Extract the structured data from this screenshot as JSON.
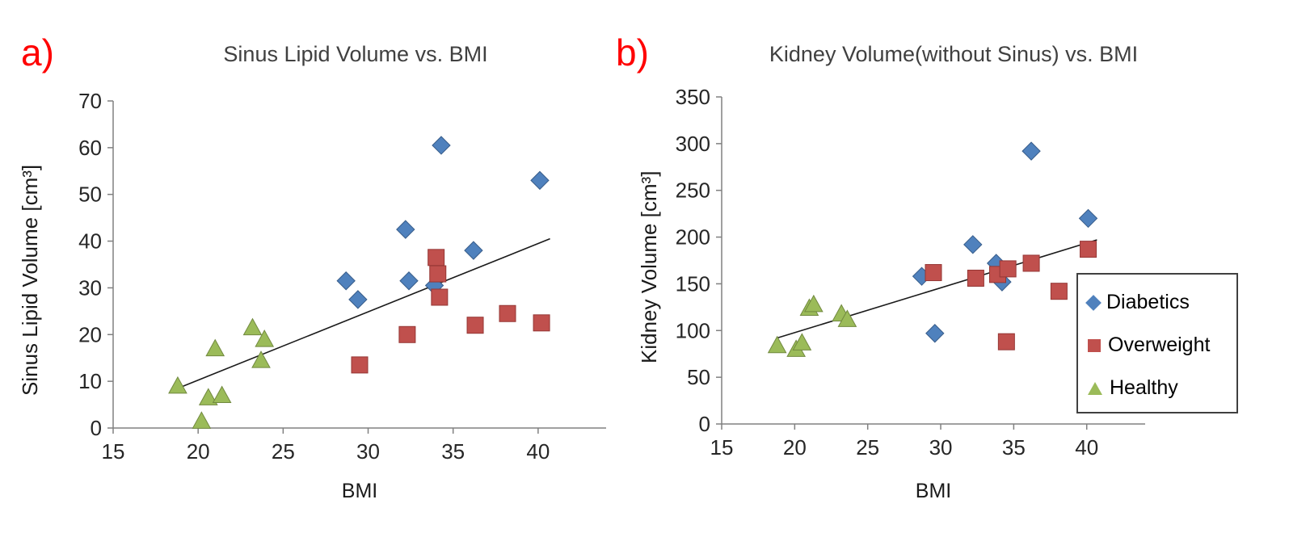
{
  "colors": {
    "background": "#ffffff",
    "axis": "#808080",
    "tick_text": "#262626",
    "title_text": "#404040",
    "panel_label": "#ff0000",
    "trendline": "#1a1a1a",
    "diabetics": "#4F81BD",
    "overweight": "#C0504D",
    "healthy": "#9BBB59"
  },
  "legend": {
    "items": [
      {
        "label": "Diabetics",
        "marker": "diamond",
        "color": "#4F81BD"
      },
      {
        "label": "Overweight",
        "marker": "square",
        "color": "#C0504D"
      },
      {
        "label": "Healthy",
        "marker": "triangle",
        "color": "#9BBB59"
      }
    ]
  },
  "chart_data": [
    {
      "type": "scatter",
      "panel_label": "a)",
      "title": "Sinus Lipid Volume vs. BMI",
      "xlabel": "BMI",
      "ylabel": "Sinus Lipid Volume [cm³]",
      "xlim": [
        15,
        44
      ],
      "ylim": [
        0,
        70
      ],
      "xticks": [
        15,
        20,
        25,
        30,
        35,
        40
      ],
      "yticks": [
        0,
        10,
        20,
        30,
        40,
        50,
        60,
        70
      ],
      "grid": false,
      "legend_position": "none",
      "series": [
        {
          "name": "Diabetics",
          "marker": "diamond",
          "color": "#4F81BD",
          "edge": "#385D8A",
          "points": [
            [
              28.7,
              31.5
            ],
            [
              29.4,
              27.5
            ],
            [
              32.2,
              42.5
            ],
            [
              32.4,
              31.5
            ],
            [
              33.9,
              30.5
            ],
            [
              34.3,
              60.5
            ],
            [
              36.2,
              38
            ],
            [
              40.1,
              53
            ]
          ]
        },
        {
          "name": "Overweight",
          "marker": "square",
          "color": "#C0504D",
          "edge": "#953735",
          "points": [
            [
              29.5,
              13.5
            ],
            [
              32.3,
              20
            ],
            [
              34.0,
              36.5
            ],
            [
              34.1,
              33
            ],
            [
              34.2,
              28
            ],
            [
              36.3,
              22
            ],
            [
              38.2,
              24.5
            ],
            [
              40.2,
              22.5
            ]
          ]
        },
        {
          "name": "Healthy",
          "marker": "triangle",
          "color": "#9BBB59",
          "edge": "#71893F",
          "points": [
            [
              18.8,
              9
            ],
            [
              20.2,
              1.5
            ],
            [
              20.6,
              6.5
            ],
            [
              21.0,
              17
            ],
            [
              21.4,
              7
            ],
            [
              23.2,
              21.5
            ],
            [
              23.7,
              14.5
            ],
            [
              23.9,
              19
            ]
          ]
        }
      ],
      "trendline": {
        "x1": 18.8,
        "y1": 8.5,
        "x2": 40.7,
        "y2": 40.5
      }
    },
    {
      "type": "scatter",
      "panel_label": "b)",
      "title": "Kidney Volume(without Sinus) vs. BMI",
      "xlabel": "BMI",
      "ylabel": "Kidney Volume [cm³]",
      "xlim": [
        15,
        44
      ],
      "ylim": [
        0,
        350
      ],
      "xticks": [
        15,
        20,
        25,
        30,
        35,
        40
      ],
      "yticks": [
        0,
        50,
        100,
        150,
        200,
        250,
        300,
        350
      ],
      "grid": false,
      "legend_position": "right",
      "series": [
        {
          "name": "Diabetics",
          "marker": "diamond",
          "color": "#4F81BD",
          "edge": "#385D8A",
          "points": [
            [
              28.7,
              158
            ],
            [
              29.6,
              97
            ],
            [
              32.2,
              192
            ],
            [
              33.8,
              172
            ],
            [
              34.2,
              152
            ],
            [
              36.2,
              292
            ],
            [
              40.1,
              220
            ]
          ]
        },
        {
          "name": "Overweight",
          "marker": "square",
          "color": "#C0504D",
          "edge": "#953735",
          "points": [
            [
              29.5,
              162
            ],
            [
              32.4,
              156
            ],
            [
              33.9,
              160
            ],
            [
              34.6,
              166
            ],
            [
              34.5,
              88
            ],
            [
              36.2,
              172
            ],
            [
              38.1,
              142
            ],
            [
              40.1,
              187
            ]
          ]
        },
        {
          "name": "Healthy",
          "marker": "triangle",
          "color": "#9BBB59",
          "edge": "#71893F",
          "points": [
            [
              18.8,
              84
            ],
            [
              20.1,
              80
            ],
            [
              20.5,
              87
            ],
            [
              21.0,
              124
            ],
            [
              21.3,
              128
            ],
            [
              23.2,
              118
            ],
            [
              23.6,
              112
            ]
          ]
        }
      ],
      "trendline": {
        "x1": 18.8,
        "y1": 92,
        "x2": 40.7,
        "y2": 197
      }
    }
  ]
}
